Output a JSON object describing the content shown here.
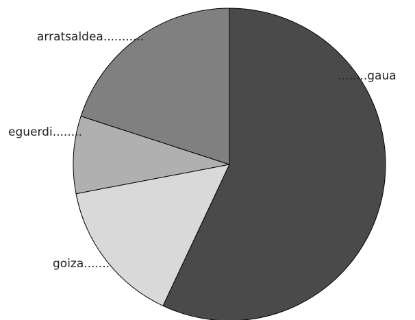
{
  "chart_data": {
    "type": "pie",
    "title": "",
    "start": "top",
    "direction": "clockwise",
    "slices": [
      {
        "label": "gaua",
        "value": 57,
        "color": "#4a4a4a",
        "label_text": "........gaua"
      },
      {
        "label": "goiza",
        "value": 15,
        "color": "#d9d9d9",
        "label_text": "goiza......."
      },
      {
        "label": "eguerdi",
        "value": 8,
        "color": "#b0b0b0",
        "label_text": "eguerdi........"
      },
      {
        "label": "arratsaldea",
        "value": 20,
        "color": "#808080",
        "label_text": "arratsaldea..........."
      }
    ]
  }
}
